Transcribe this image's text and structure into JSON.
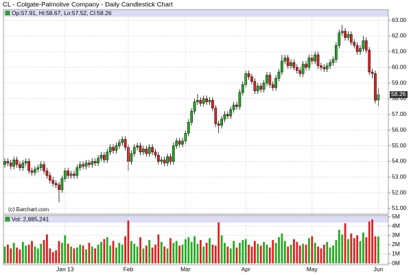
{
  "chart_data": [
    {
      "type": "candlestick",
      "title": "CL - Colgate-Palmolive Company - Daily Candlestick Chart",
      "info_label": "Op:57.91, Hi:58.67, Lo:57.52, Cl:58.26",
      "watermark": "(c) Barchart.com",
      "up_color": "#22aa22",
      "down_color": "#e02020",
      "open": [
        53.8,
        54.0,
        53.9,
        53.7,
        54.1,
        53.8,
        53.6,
        53.9,
        54.0,
        53.4,
        53.3,
        53.5,
        53.6,
        53.8,
        53.4,
        53.1,
        52.8,
        52.6,
        52.5,
        52.2,
        52.9,
        53.4,
        53.1,
        53.2,
        53.1,
        53.6,
        53.8,
        53.7,
        53.9,
        53.8,
        54.0,
        53.9,
        54.2,
        54.4,
        54.1,
        54.6,
        54.9,
        54.7,
        55.0,
        55.2,
        55.4,
        54.9,
        54.0,
        54.5,
        54.9,
        55.0,
        54.6,
        54.8,
        54.5,
        54.9,
        54.6,
        54.4,
        54.0,
        54.1,
        53.9,
        54.3,
        54.0,
        55.0,
        55.3,
        55.1,
        55.3,
        55.8,
        56.5,
        57.2,
        57.8,
        57.9,
        57.7,
        58.0,
        57.8,
        57.9,
        57.4,
        56.4,
        56.3,
        56.7,
        57.0,
        56.9,
        57.3,
        57.6,
        57.5,
        58.4,
        58.9,
        59.6,
        59.4,
        59.1,
        58.5,
        58.8,
        58.6,
        59.0,
        59.5,
        58.9,
        58.7,
        59.3,
        59.7,
        60.4,
        60.6,
        60.1,
        60.3,
        60.0,
        59.8,
        59.6,
        60.2,
        60.0,
        60.6,
        60.4,
        60.8,
        60.1,
        60.0,
        59.9,
        60.1,
        60.3,
        60.5,
        61.4,
        62.2,
        62.3,
        61.9,
        62.1,
        61.6,
        61.4,
        61.0,
        61.2,
        61.7,
        61.1,
        59.7,
        59.6,
        57.91
      ],
      "high": [
        54.2,
        54.2,
        54.1,
        54.3,
        54.3,
        54.0,
        54.1,
        54.2,
        54.2,
        53.6,
        53.7,
        53.8,
        54.0,
        54.0,
        53.6,
        53.3,
        53.0,
        52.8,
        52.7,
        53.1,
        53.6,
        53.6,
        53.4,
        53.4,
        53.8,
        54.0,
        54.0,
        54.1,
        54.1,
        54.2,
        54.2,
        54.4,
        54.6,
        54.6,
        54.8,
        55.1,
        55.1,
        55.2,
        55.4,
        55.6,
        55.6,
        55.1,
        54.7,
        55.1,
        55.2,
        55.2,
        55.0,
        55.0,
        55.1,
        55.1,
        54.8,
        54.6,
        54.3,
        54.3,
        54.5,
        54.5,
        55.2,
        55.5,
        55.5,
        55.5,
        56.0,
        56.7,
        57.4,
        58.0,
        58.3,
        58.1,
        58.2,
        58.2,
        58.1,
        58.1,
        57.6,
        56.6,
        56.9,
        57.2,
        57.2,
        57.5,
        57.8,
        57.8,
        58.6,
        59.1,
        59.8,
        59.8,
        59.6,
        59.3,
        59.0,
        59.0,
        59.2,
        59.7,
        59.7,
        59.1,
        59.5,
        59.9,
        60.8,
        60.8,
        60.8,
        60.5,
        60.5,
        60.2,
        60.0,
        60.4,
        60.4,
        60.8,
        60.8,
        61.0,
        61.0,
        60.3,
        60.2,
        60.3,
        60.5,
        60.7,
        61.6,
        62.4,
        62.7,
        62.5,
        62.3,
        62.3,
        61.8,
        61.6,
        61.4,
        62.0,
        61.9,
        61.3,
        59.9,
        59.8,
        58.67
      ],
      "low": [
        53.6,
        53.7,
        53.5,
        53.5,
        53.6,
        53.4,
        53.4,
        53.7,
        53.2,
        53.1,
        53.1,
        53.3,
        53.4,
        53.2,
        52.9,
        52.6,
        52.4,
        52.3,
        51.4,
        52.0,
        52.7,
        52.9,
        52.9,
        52.9,
        52.9,
        53.4,
        53.5,
        53.5,
        53.6,
        53.6,
        53.7,
        53.7,
        54.0,
        53.9,
        53.9,
        54.4,
        54.5,
        54.5,
        54.8,
        55.0,
        54.7,
        53.4,
        53.8,
        54.3,
        54.7,
        54.4,
        54.4,
        54.3,
        54.3,
        54.4,
        54.2,
        53.8,
        53.8,
        53.7,
        53.7,
        53.8,
        53.8,
        54.8,
        54.9,
        54.9,
        55.1,
        55.6,
        56.3,
        57.0,
        57.6,
        57.5,
        57.5,
        57.6,
        57.6,
        57.2,
        56.2,
        55.8,
        56.1,
        56.5,
        56.7,
        56.7,
        57.1,
        57.3,
        57.3,
        58.2,
        58.7,
        59.2,
        58.9,
        58.3,
        58.3,
        58.4,
        58.4,
        58.8,
        58.7,
        58.5,
        58.5,
        59.1,
        59.5,
        60.2,
        59.9,
        59.9,
        59.8,
        59.6,
        59.4,
        59.4,
        59.8,
        59.8,
        60.2,
        60.2,
        59.9,
        59.8,
        59.7,
        59.7,
        59.9,
        60.1,
        60.3,
        61.2,
        62.0,
        61.7,
        61.7,
        61.4,
        61.2,
        60.8,
        60.8,
        61.0,
        60.9,
        59.5,
        59.3,
        57.7,
        57.52
      ],
      "close": [
        54.0,
        53.9,
        53.7,
        54.1,
        53.8,
        53.6,
        53.9,
        54.0,
        53.4,
        53.3,
        53.5,
        53.6,
        53.8,
        53.4,
        53.1,
        52.8,
        52.6,
        52.5,
        52.2,
        52.9,
        53.4,
        53.1,
        53.2,
        53.1,
        53.6,
        53.8,
        53.7,
        53.9,
        53.8,
        54.0,
        53.9,
        54.2,
        54.4,
        54.1,
        54.6,
        54.9,
        54.7,
        55.0,
        55.2,
        55.4,
        54.9,
        54.0,
        54.5,
        54.9,
        55.0,
        54.6,
        54.8,
        54.5,
        54.9,
        54.6,
        54.4,
        54.0,
        54.1,
        53.9,
        54.3,
        54.0,
        55.0,
        55.3,
        55.1,
        55.3,
        55.8,
        56.5,
        57.2,
        57.8,
        57.9,
        57.7,
        58.0,
        57.8,
        57.9,
        57.4,
        56.4,
        56.3,
        56.7,
        57.0,
        56.9,
        57.3,
        57.6,
        57.5,
        58.4,
        58.9,
        59.6,
        59.4,
        59.1,
        58.5,
        58.8,
        58.6,
        59.0,
        59.5,
        58.9,
        58.7,
        59.3,
        59.7,
        60.4,
        60.6,
        60.1,
        60.3,
        60.0,
        59.8,
        59.6,
        60.2,
        60.0,
        60.6,
        60.4,
        60.8,
        60.1,
        60.0,
        59.9,
        60.1,
        60.3,
        60.5,
        61.4,
        62.2,
        62.3,
        61.9,
        62.1,
        61.6,
        61.4,
        61.0,
        61.2,
        61.7,
        61.1,
        59.7,
        59.6,
        57.9,
        58.26
      ],
      "ylim": [
        50.65,
        63.2
      ],
      "yticks": [
        {
          "value": 63,
          "label": "63.00"
        },
        {
          "value": 62,
          "label": "62.00"
        },
        {
          "value": 61,
          "label": "61.00"
        },
        {
          "value": 60,
          "label": "60.00"
        },
        {
          "value": 59,
          "label": "59.00"
        },
        {
          "value": 58,
          "label": "58.00"
        },
        {
          "value": 57,
          "label": "57.00"
        },
        {
          "value": 56,
          "label": "56.00"
        },
        {
          "value": 55,
          "label": "55.00"
        },
        {
          "value": 54,
          "label": "54.00"
        },
        {
          "value": 53,
          "label": "53.00"
        },
        {
          "value": 52,
          "label": "52.00"
        },
        {
          "value": 51,
          "label": "51.00"
        }
      ],
      "grid": true
    },
    {
      "type": "bar",
      "info_label": "Vol: 2,885,241",
      "categories": [
        null,
        null,
        null,
        null,
        null,
        null,
        null,
        null,
        null,
        null,
        null,
        null,
        null,
        null,
        null,
        null,
        null,
        null,
        null,
        null,
        "Jan 13",
        null,
        null,
        null,
        null,
        null,
        null,
        null,
        null,
        null,
        null,
        null,
        null,
        null,
        null,
        null,
        null,
        null,
        null,
        null,
        null,
        "Feb",
        null,
        null,
        null,
        null,
        null,
        null,
        null,
        null,
        null,
        null,
        null,
        null,
        null,
        null,
        null,
        null,
        null,
        null,
        "Mar",
        null,
        null,
        null,
        null,
        null,
        null,
        null,
        null,
        null,
        null,
        null,
        null,
        null,
        null,
        null,
        null,
        null,
        null,
        null,
        "Apr",
        null,
        null,
        null,
        null,
        null,
        null,
        null,
        null,
        null,
        null,
        null,
        null,
        null,
        null,
        null,
        null,
        null,
        null,
        null,
        null,
        null,
        "May",
        null,
        null,
        null,
        null,
        null,
        null,
        null,
        null,
        null,
        null,
        null,
        null,
        null,
        null,
        null,
        null,
        null,
        null,
        null,
        null,
        null,
        "Jun"
      ],
      "values": [
        1.8,
        2.0,
        1.6,
        2.2,
        1.7,
        1.5,
        2.3,
        1.9,
        2.0,
        2.4,
        1.8,
        1.6,
        2.1,
        2.5,
        3.1,
        1.6,
        1.2,
        1.4,
        2.4,
        2.2,
        3.0,
        2.1,
        1.8,
        1.6,
        1.7,
        2.0,
        1.9,
        1.5,
        2.2,
        1.8,
        1.6,
        2.0,
        2.3,
        2.6,
        2.8,
        1.9,
        2.4,
        1.7,
        2.2,
        2.0,
        2.9,
        4.6,
        2.4,
        2.1,
        1.8,
        2.8,
        1.6,
        1.9,
        2.5,
        1.7,
        2.0,
        3.1,
        2.3,
        1.8,
        1.6,
        2.7,
        2.2,
        2.4,
        1.9,
        2.0,
        2.6,
        2.8,
        2.3,
        2.9,
        2.1,
        2.5,
        1.8,
        2.2,
        2.7,
        2.0,
        1.9,
        4.4,
        3.0,
        2.2,
        1.8,
        1.6,
        2.4,
        1.7,
        2.2,
        2.5,
        2.6,
        2.0,
        1.8,
        2.4,
        2.1,
        1.9,
        2.3,
        2.0,
        1.7,
        2.5,
        2.2,
        2.8,
        3.2,
        2.4,
        1.8,
        2.0,
        2.6,
        2.3,
        1.9,
        2.1,
        2.0,
        2.7,
        2.9,
        2.2,
        1.8,
        1.6,
        2.0,
        2.3,
        1.7,
        1.9,
        2.5,
        3.6,
        3.1,
        4.3,
        2.6,
        3.2,
        2.7,
        3.0,
        2.4,
        3.3,
        2.8,
        4.5,
        4.7,
        2.9,
        2.885241
      ],
      "ylim": [
        0,
        5.15
      ],
      "yticks": [
        {
          "value": 5,
          "label": "5M"
        },
        {
          "value": 4,
          "label": "4M"
        },
        {
          "value": 3,
          "label": "3M"
        },
        {
          "value": 2,
          "label": "2M"
        },
        {
          "value": 1,
          "label": "1M"
        },
        {
          "value": 0,
          "label": "0M"
        }
      ],
      "grid": true
    }
  ]
}
